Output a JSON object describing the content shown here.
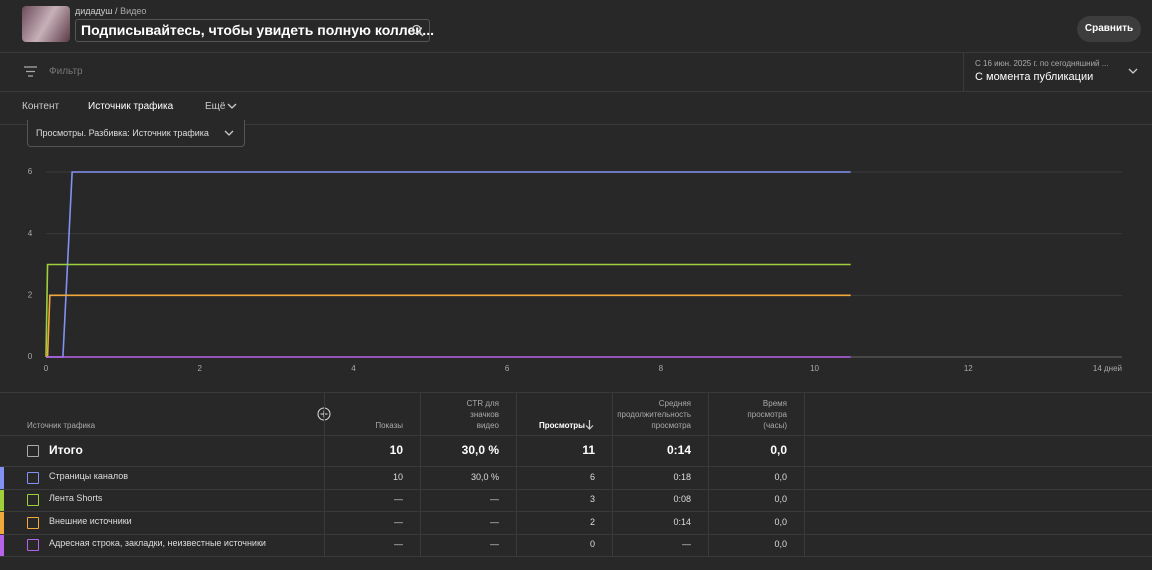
{
  "header": {
    "channel": "дидадуш",
    "separator": "/",
    "section": "Видео",
    "title": "Подписывайтесь, чтобы увидеть полную коллек...",
    "compare": "Сравнить"
  },
  "filter": {
    "placeholder": "Фильтр",
    "date_range": "С 16 июн. 2025 г. по сегодняшний ...",
    "period": "С момента публикации"
  },
  "tabs": [
    "Контент",
    "Источник трафика",
    "Ещё"
  ],
  "metric_select": "Просмотры. Разбивка: Источник трафика",
  "chart_data": {
    "type": "line",
    "x": [
      0,
      0.02,
      0.05,
      0.22,
      0.34,
      10.47
    ],
    "series": [
      {
        "name": "Страницы каналов",
        "color": "#8391f2",
        "values": [
          0,
          0,
          0,
          0,
          6,
          6
        ]
      },
      {
        "name": "Лента Shorts",
        "color": "#9fd03c",
        "values": [
          0,
          3,
          3,
          3,
          3,
          3
        ]
      },
      {
        "name": "Внешние источники",
        "color": "#f2a93b",
        "values": [
          0,
          0,
          2,
          2,
          2,
          2
        ]
      },
      {
        "name": "Адресная строка, закладки, неизвестные источники",
        "color": "#b663e8",
        "values": [
          0,
          0,
          0,
          0,
          0,
          0
        ]
      }
    ],
    "xlim": [
      0,
      14
    ],
    "xticks": [
      0,
      2,
      4,
      6,
      8,
      10,
      12,
      {
        "value": 14,
        "label": "14 дней"
      }
    ],
    "ylim": [
      0,
      6
    ],
    "yticks": [
      0,
      2,
      4,
      6
    ],
    "grid": true
  },
  "table": {
    "columns": [
      "Источник трафика",
      "Показы",
      "CTR для значков видео",
      "Просмотры",
      "Средняя продолжительность просмотра",
      "Время просмотра (часы)"
    ],
    "total": {
      "label": "Итого",
      "cells": [
        "10",
        "30,0 %",
        "11",
        "0:14",
        "0,0"
      ]
    },
    "rows": [
      {
        "label": "Страницы каналов",
        "color": "#8391f2",
        "cells": [
          "10",
          "30,0 %",
          "6",
          "0:18",
          "0,0"
        ]
      },
      {
        "label": "Лента Shorts",
        "color": "#9fd03c",
        "cells": [
          "—",
          "—",
          "3",
          "0:08",
          "0,0"
        ]
      },
      {
        "label": "Внешние источники",
        "color": "#f2a93b",
        "cells": [
          "—",
          "—",
          "2",
          "0:14",
          "0,0"
        ]
      },
      {
        "label": "Адресная строка, закладки, неизвестные источники",
        "color": "#b663e8",
        "cells": [
          "—",
          "—",
          "0",
          "—",
          "0,0"
        ]
      }
    ]
  }
}
